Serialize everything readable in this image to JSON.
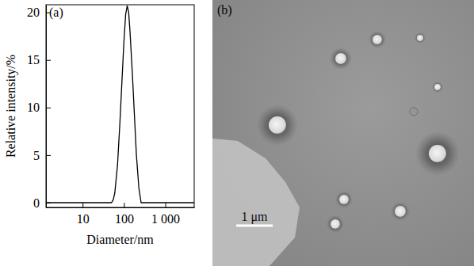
{
  "chart_data": {
    "type": "line",
    "panel": "(a)",
    "x_label": "Diameter/nm",
    "y_label": "Relative intensity/%",
    "x": [
      1.3,
      10,
      50,
      55,
      60,
      70,
      80,
      90,
      100,
      110,
      120,
      130,
      140,
      160,
      180,
      200,
      230,
      260,
      1000,
      5000
    ],
    "values": [
      0,
      0,
      0,
      0.3,
      1,
      4,
      8.5,
      13,
      17,
      19.8,
      20.7,
      20,
      18,
      13.5,
      9,
      5,
      1.5,
      0,
      0,
      0
    ],
    "color": "#000000",
    "log": "x",
    "xlim": [
      1.3,
      5000
    ],
    "xticks": [
      10,
      100,
      {
        "value": 1000,
        "label": "1 000"
      }
    ],
    "ylim": [
      -0.5,
      20.8
    ],
    "yticks": [
      0,
      5,
      10,
      15,
      20
    ],
    "grid": false
  },
  "image": {
    "panel": "(b)",
    "scale_bar": "1 μm"
  }
}
